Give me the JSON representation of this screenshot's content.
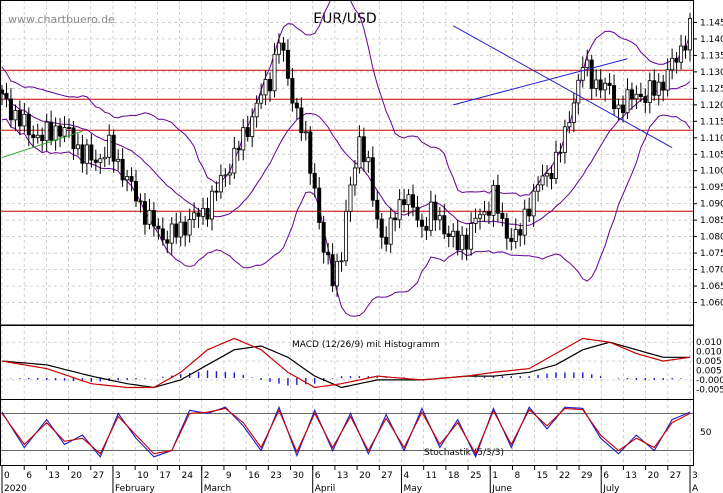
{
  "watermark": "www.chartbuero.de",
  "chart_data": [
    {
      "type": "candlestick",
      "title": "EUR/USD",
      "ylim": [
        1.055,
        1.15
      ],
      "y_ticks": [
        1.06,
        1.065,
        1.07,
        1.075,
        1.08,
        1.085,
        1.09,
        1.095,
        1.1,
        1.105,
        1.11,
        1.115,
        1.12,
        1.125,
        1.13,
        1.135,
        1.14,
        1.145
      ],
      "y_tick_labels": [
        "1.060",
        "1.065",
        "1.070",
        "1.075",
        "1.080",
        "1.085",
        "1.090",
        "1.095",
        "1.100",
        "1.105",
        "1.110",
        "1.115",
        "1.120",
        "1.125",
        "1.130",
        "1.135",
        "1.140",
        "1.145"
      ],
      "close_path": [
        [
          0,
          1.122
        ],
        [
          3,
          1.117
        ],
        [
          6,
          1.112
        ],
        [
          9,
          1.11
        ],
        [
          12,
          1.113
        ],
        [
          15,
          1.111
        ],
        [
          18,
          1.105
        ],
        [
          21,
          1.103
        ],
        [
          24,
          1.107
        ],
        [
          27,
          1.1
        ],
        [
          30,
          1.092
        ],
        [
          33,
          1.085
        ],
        [
          36,
          1.08
        ],
        [
          39,
          1.081
        ],
        [
          42,
          1.085
        ],
        [
          45,
          1.087
        ],
        [
          48,
          1.094
        ],
        [
          51,
          1.102
        ],
        [
          54,
          1.11
        ],
        [
          57,
          1.12
        ],
        [
          60,
          1.128
        ],
        [
          62,
          1.14
        ],
        [
          64,
          1.128
        ],
        [
          66,
          1.118
        ],
        [
          68,
          1.108
        ],
        [
          70,
          1.095
        ],
        [
          72,
          1.075
        ],
        [
          74,
          1.068
        ],
        [
          76,
          1.075
        ],
        [
          78,
          1.095
        ],
        [
          80,
          1.11
        ],
        [
          82,
          1.1
        ],
        [
          84,
          1.085
        ],
        [
          86,
          1.078
        ],
        [
          88,
          1.087
        ],
        [
          90,
          1.093
        ],
        [
          92,
          1.088
        ],
        [
          94,
          1.083
        ],
        [
          96,
          1.087
        ],
        [
          98,
          1.085
        ],
        [
          100,
          1.081
        ],
        [
          102,
          1.077
        ],
        [
          104,
          1.08
        ],
        [
          106,
          1.085
        ],
        [
          108,
          1.087
        ],
        [
          110,
          1.093
        ],
        [
          112,
          1.083
        ],
        [
          114,
          1.08
        ],
        [
          116,
          1.081
        ],
        [
          118,
          1.09
        ],
        [
          120,
          1.096
        ],
        [
          122,
          1.098
        ],
        [
          124,
          1.104
        ],
        [
          126,
          1.11
        ],
        [
          128,
          1.122
        ],
        [
          130,
          1.132
        ],
        [
          132,
          1.128
        ],
        [
          134,
          1.126
        ],
        [
          136,
          1.124
        ],
        [
          138,
          1.119
        ],
        [
          140,
          1.121
        ],
        [
          142,
          1.124
        ],
        [
          144,
          1.122
        ],
        [
          146,
          1.125
        ],
        [
          148,
          1.127
        ],
        [
          150,
          1.132
        ],
        [
          152,
          1.137
        ],
        [
          154,
          1.143
        ]
      ],
      "horizontal_levels": [
        1.1305,
        1.1217,
        1.1123,
        1.0877
      ],
      "level_color": "#cc0000",
      "channel_line_down": [
        [
          101,
          1.144
        ],
        [
          150,
          1.107
        ]
      ],
      "channel_line_up": [
        [
          101,
          1.12
        ],
        [
          140,
          1.134
        ]
      ],
      "trend_line_green": [
        [
          0,
          1.104
        ],
        [
          18,
          1.112
        ]
      ],
      "channel_color": "#2222cc",
      "bollinger_color": "#660099"
    },
    {
      "type": "line",
      "label": "MACD (12/26/9) mit Histogramm",
      "ylim": [
        -0.004,
        0.0135
      ],
      "y_ticks": [
        0.0,
        0.005,
        0.01
      ],
      "y_tick_labels": [
        "-0.000",
        "0.005",
        "0.010"
      ],
      "extra_tick_labels": [
        "0.000"
      ],
      "series": [
        {
          "color": "#000000",
          "points": [
            [
              0,
              0.005
            ],
            [
              10,
              0.004
            ],
            [
              20,
              0.001
            ],
            [
              28,
              -0.001
            ],
            [
              34,
              -0.002
            ],
            [
              40,
              0.0
            ],
            [
              46,
              0.004
            ],
            [
              52,
              0.008
            ],
            [
              58,
              0.009
            ],
            [
              64,
              0.006
            ],
            [
              70,
              0.001
            ],
            [
              76,
              -0.002
            ],
            [
              84,
              0.0
            ],
            [
              94,
              0.0
            ],
            [
              104,
              0.001
            ],
            [
              110,
              0.001
            ],
            [
              118,
              0.002
            ],
            [
              124,
              0.004
            ],
            [
              130,
              0.008
            ],
            [
              136,
              0.01
            ],
            [
              142,
              0.008
            ],
            [
              148,
              0.006
            ],
            [
              154,
              0.006
            ]
          ]
        },
        {
          "color": "#cc0000",
          "points": [
            [
              0,
              0.005
            ],
            [
              10,
              0.003
            ],
            [
              20,
              -0.001
            ],
            [
              28,
              -0.002
            ],
            [
              34,
              -0.002
            ],
            [
              40,
              0.002
            ],
            [
              46,
              0.008
            ],
            [
              52,
              0.011
            ],
            [
              58,
              0.008
            ],
            [
              64,
              0.002
            ],
            [
              70,
              -0.002
            ],
            [
              76,
              -0.001
            ],
            [
              84,
              0.001
            ],
            [
              94,
              0.0
            ],
            [
              104,
              0.001
            ],
            [
              110,
              0.002
            ],
            [
              118,
              0.003
            ],
            [
              124,
              0.007
            ],
            [
              130,
              0.011
            ],
            [
              136,
              0.01
            ],
            [
              142,
              0.007
            ],
            [
              148,
              0.005
            ],
            [
              154,
              0.006
            ]
          ]
        }
      ],
      "histogram_color": "#1a1acc"
    },
    {
      "type": "line",
      "label": "Stochastik (5/3/3)",
      "ylim": [
        0,
        100
      ],
      "y_ticks": [
        50
      ],
      "y_tick_labels": [
        "50"
      ],
      "levels": [
        20,
        80
      ],
      "series": [
        {
          "color": "#1a1acc",
          "points": [
            [
              0,
              82
            ],
            [
              5,
              25
            ],
            [
              10,
              70
            ],
            [
              14,
              30
            ],
            [
              18,
              45
            ],
            [
              22,
              10
            ],
            [
              26,
              80
            ],
            [
              30,
              40
            ],
            [
              34,
              10
            ],
            [
              38,
              20
            ],
            [
              42,
              85
            ],
            [
              46,
              80
            ],
            [
              50,
              90
            ],
            [
              54,
              60
            ],
            [
              58,
              20
            ],
            [
              62,
              90
            ],
            [
              66,
              12
            ],
            [
              70,
              85
            ],
            [
              74,
              20
            ],
            [
              78,
              80
            ],
            [
              82,
              15
            ],
            [
              86,
              78
            ],
            [
              90,
              20
            ],
            [
              94,
              88
            ],
            [
              98,
              25
            ],
            [
              102,
              70
            ],
            [
              106,
              10
            ],
            [
              110,
              88
            ],
            [
              114,
              25
            ],
            [
              118,
              90
            ],
            [
              122,
              55
            ],
            [
              126,
              90
            ],
            [
              130,
              88
            ],
            [
              134,
              40
            ],
            [
              138,
              15
            ],
            [
              142,
              45
            ],
            [
              146,
              20
            ],
            [
              150,
              70
            ],
            [
              154,
              82
            ]
          ]
        },
        {
          "color": "#cc0000",
          "points": [
            [
              0,
              80
            ],
            [
              5,
              30
            ],
            [
              10,
              65
            ],
            [
              14,
              35
            ],
            [
              18,
              40
            ],
            [
              22,
              15
            ],
            [
              26,
              75
            ],
            [
              30,
              45
            ],
            [
              34,
              15
            ],
            [
              38,
              20
            ],
            [
              42,
              80
            ],
            [
              46,
              82
            ],
            [
              50,
              88
            ],
            [
              54,
              65
            ],
            [
              58,
              25
            ],
            [
              62,
              85
            ],
            [
              66,
              18
            ],
            [
              70,
              80
            ],
            [
              74,
              25
            ],
            [
              78,
              75
            ],
            [
              82,
              20
            ],
            [
              86,
              72
            ],
            [
              90,
              25
            ],
            [
              94,
              82
            ],
            [
              98,
              30
            ],
            [
              102,
              65
            ],
            [
              106,
              15
            ],
            [
              110,
              84
            ],
            [
              114,
              30
            ],
            [
              118,
              86
            ],
            [
              122,
              60
            ],
            [
              126,
              88
            ],
            [
              130,
              86
            ],
            [
              134,
              45
            ],
            [
              138,
              20
            ],
            [
              142,
              40
            ],
            [
              146,
              25
            ],
            [
              150,
              65
            ],
            [
              154,
              80
            ]
          ]
        }
      ]
    }
  ],
  "x_axis": {
    "day_labels": [
      "0",
      "6",
      "13",
      "20",
      "27",
      "3",
      "10",
      "17",
      "24",
      "2",
      "9",
      "16",
      "23",
      "30",
      "6",
      "13",
      "20",
      "27",
      "4",
      "11",
      "18",
      "25",
      "1",
      "8",
      "15",
      "22",
      "29",
      "6",
      "13",
      "20",
      "27",
      "3"
    ],
    "month_labels": [
      "2020",
      "February",
      "March",
      "April",
      "May",
      "June",
      "July",
      "A"
    ]
  },
  "colors": {
    "grid": "#bdbdbd",
    "candle_up": "#ffffff",
    "candle_down": "#000000",
    "axis": "#000000"
  }
}
